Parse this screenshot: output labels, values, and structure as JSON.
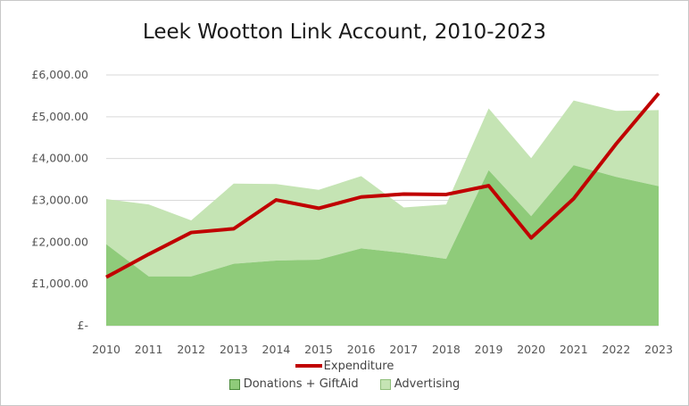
{
  "chart_data": {
    "type": "area",
    "title": "Leek Wootton Link Account, 2010-2023",
    "xlabel": "",
    "ylabel": "",
    "categories": [
      "2010",
      "2011",
      "2012",
      "2013",
      "2014",
      "2015",
      "2016",
      "2017",
      "2018",
      "2019",
      "2020",
      "2021",
      "2022",
      "2023"
    ],
    "ylim": [
      0,
      6000
    ],
    "yticks": [
      0,
      1000,
      2000,
      3000,
      4000,
      5000,
      6000
    ],
    "ytick_labels": [
      "£-",
      "£1,000.00",
      "£2,000.00",
      "£3,000.00",
      "£4,000.00",
      "£5,000.00",
      "£6,000.00"
    ],
    "grid": true,
    "stacked": true,
    "legend_position": "bottom",
    "series": [
      {
        "name": "Donations + GiftAid",
        "kind": "area",
        "color": "#8fcb7a",
        "values": [
          1950,
          1180,
          1180,
          1480,
          1560,
          1580,
          1850,
          1740,
          1600,
          3720,
          2620,
          3840,
          3560,
          3340
        ]
      },
      {
        "name": "Advertising",
        "kind": "area",
        "color": "#c5e4b4",
        "values": [
          1080,
          1720,
          1340,
          1920,
          1830,
          1670,
          1730,
          1090,
          1300,
          1480,
          1390,
          1550,
          1580,
          1820
        ]
      },
      {
        "name": "Expenditure",
        "kind": "line",
        "color": "#c00000",
        "values": [
          1160,
          1710,
          2230,
          2320,
          3010,
          2810,
          3080,
          3150,
          3140,
          3350,
          2100,
          3040,
          4350,
          5560
        ]
      }
    ]
  }
}
